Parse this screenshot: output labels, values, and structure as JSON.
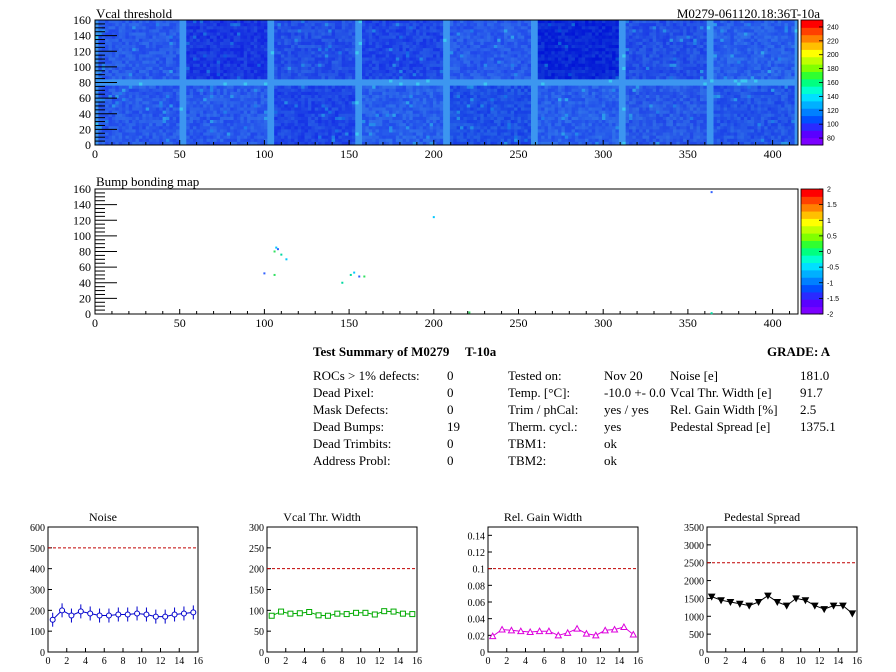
{
  "header": {
    "title_left": "Vcal threshold",
    "title_right": "M0279-061120.18:36T-10a",
    "bump_title": "Bump bonding map"
  },
  "maps": {
    "vcal": {
      "y_ticks": [
        "0",
        "20",
        "40",
        "60",
        "80",
        "100",
        "120",
        "140",
        "160"
      ],
      "x_ticks": [
        "0",
        "50",
        "100",
        "150",
        "200",
        "250",
        "300",
        "350",
        "400"
      ],
      "palette_ticks": [
        "80",
        "100",
        "120",
        "140",
        "160",
        "180",
        "200",
        "220",
        "240"
      ],
      "palette_range": [
        70,
        250
      ]
    },
    "bump": {
      "y_ticks": [
        "0",
        "20",
        "40",
        "60",
        "80",
        "100",
        "120",
        "140",
        "160"
      ],
      "x_ticks": [
        "0",
        "50",
        "100",
        "150",
        "200",
        "250",
        "300",
        "350",
        "400"
      ],
      "palette_ticks": [
        "-2",
        "-1.5",
        "-1",
        "-0.5",
        "0",
        "0.5",
        "1",
        "1.5",
        "2"
      ],
      "palette_range": [
        -2,
        2
      ],
      "points": [
        {
          "x": 107,
          "y": 85
        },
        {
          "x": 108,
          "y": 83
        },
        {
          "x": 106,
          "y": 80
        },
        {
          "x": 110,
          "y": 76
        },
        {
          "x": 113,
          "y": 70
        },
        {
          "x": 100,
          "y": 52
        },
        {
          "x": 106,
          "y": 50
        },
        {
          "x": 151,
          "y": 50
        },
        {
          "x": 153,
          "y": 53
        },
        {
          "x": 156,
          "y": 48
        },
        {
          "x": 159,
          "y": 48
        },
        {
          "x": 146,
          "y": 40
        },
        {
          "x": 200,
          "y": 124
        },
        {
          "x": 364,
          "y": 156
        },
        {
          "x": 221,
          "y": 2
        },
        {
          "x": 364,
          "y": 1
        }
      ]
    }
  },
  "summary": {
    "title": "Test Summary of M0279",
    "temp": "T-10a",
    "grade": "GRADE:  A",
    "col1": [
      {
        "label": "ROCs > 1% defects:",
        "value": "0"
      },
      {
        "label": "Dead Pixel:",
        "value": "0"
      },
      {
        "label": "Mask Defects:",
        "value": "0"
      },
      {
        "label": "Dead Bumps:",
        "value": "19"
      },
      {
        "label": "Dead Trimbits:",
        "value": "0"
      },
      {
        "label": "Address Probl:",
        "value": "0"
      }
    ],
    "col2": [
      {
        "label": "Tested on:",
        "value": "Nov 20"
      },
      {
        "label": "Temp. [°C]:",
        "value": "-10.0 +- 0.0"
      },
      {
        "label": "Trim / phCal:",
        "value": "yes / yes"
      },
      {
        "label": "Therm. cycl.:",
        "value": "yes"
      },
      {
        "label": "TBM1:",
        "value": "ok"
      },
      {
        "label": "TBM2:",
        "value": "ok"
      }
    ],
    "col3": [
      {
        "label": "Noise [e]",
        "value": "181.0"
      },
      {
        "label": "Vcal Thr. Width [e]",
        "value": "91.7"
      },
      {
        "label": "Rel. Gain Width [%]",
        "value": "2.5"
      },
      {
        "label": "Pedestal Spread [e]",
        "value": "1375.1"
      }
    ]
  },
  "chart_data": [
    {
      "type": "line",
      "title": "Noise",
      "color": "#0000cc",
      "marker": "circle",
      "x": [
        0,
        1,
        2,
        3,
        4,
        5,
        6,
        7,
        8,
        9,
        10,
        11,
        12,
        13,
        14,
        15
      ],
      "y": [
        155,
        200,
        175,
        195,
        185,
        175,
        175,
        180,
        180,
        185,
        180,
        170,
        170,
        180,
        185,
        190
      ],
      "ylim": [
        0,
        600
      ],
      "threshold": 500,
      "y_ticks": [
        "0",
        "100",
        "200",
        "300",
        "400",
        "500",
        "600"
      ],
      "x_ticks": [
        "0",
        "2",
        "4",
        "6",
        "8",
        "10",
        "12",
        "14",
        "16"
      ]
    },
    {
      "type": "line",
      "title": "Vcal Thr. Width",
      "color": "#00aa00",
      "marker": "square",
      "x": [
        0,
        1,
        2,
        3,
        4,
        5,
        6,
        7,
        8,
        9,
        10,
        11,
        12,
        13,
        14,
        15
      ],
      "y": [
        87,
        97,
        92,
        93,
        96,
        88,
        87,
        92,
        91,
        94,
        94,
        90,
        98,
        97,
        92,
        91
      ],
      "ylim": [
        0,
        300
      ],
      "threshold": 200,
      "y_ticks": [
        "0",
        "50",
        "100",
        "150",
        "200",
        "250",
        "300"
      ],
      "x_ticks": [
        "0",
        "2",
        "4",
        "6",
        "8",
        "10",
        "12",
        "14",
        "16"
      ]
    },
    {
      "type": "line",
      "title": "Rel. Gain Width",
      "color": "#dd00dd",
      "marker": "triangle",
      "x": [
        0,
        1,
        2,
        3,
        4,
        5,
        6,
        7,
        8,
        9,
        10,
        11,
        12,
        13,
        14,
        15
      ],
      "y": [
        0.019,
        0.027,
        0.026,
        0.025,
        0.024,
        0.025,
        0.025,
        0.02,
        0.023,
        0.028,
        0.022,
        0.02,
        0.026,
        0.027,
        0.03,
        0.021
      ],
      "ylim": [
        0,
        0.15
      ],
      "threshold": 0.1,
      "y_ticks": [
        "0",
        "0.02",
        "0.04",
        "0.06",
        "0.08",
        "0.1",
        "0.12",
        "0.14"
      ],
      "x_ticks": [
        "0",
        "2",
        "4",
        "6",
        "8",
        "10",
        "12",
        "14",
        "16"
      ]
    },
    {
      "type": "line",
      "title": "Pedestal Spread",
      "color": "#000000",
      "marker": "triangle-down",
      "x": [
        0,
        1,
        2,
        3,
        4,
        5,
        6,
        7,
        8,
        9,
        10,
        11,
        12,
        13,
        14,
        15
      ],
      "y": [
        1550,
        1450,
        1400,
        1350,
        1300,
        1400,
        1580,
        1400,
        1300,
        1500,
        1450,
        1300,
        1200,
        1300,
        1300,
        1080
      ],
      "ylim": [
        0,
        3500
      ],
      "threshold": 2500,
      "y_ticks": [
        "0",
        "500",
        "1000",
        "1500",
        "2000",
        "2500",
        "3000",
        "3500"
      ],
      "x_ticks": [
        "0",
        "2",
        "4",
        "6",
        "8",
        "10",
        "12",
        "14",
        "16"
      ]
    }
  ]
}
